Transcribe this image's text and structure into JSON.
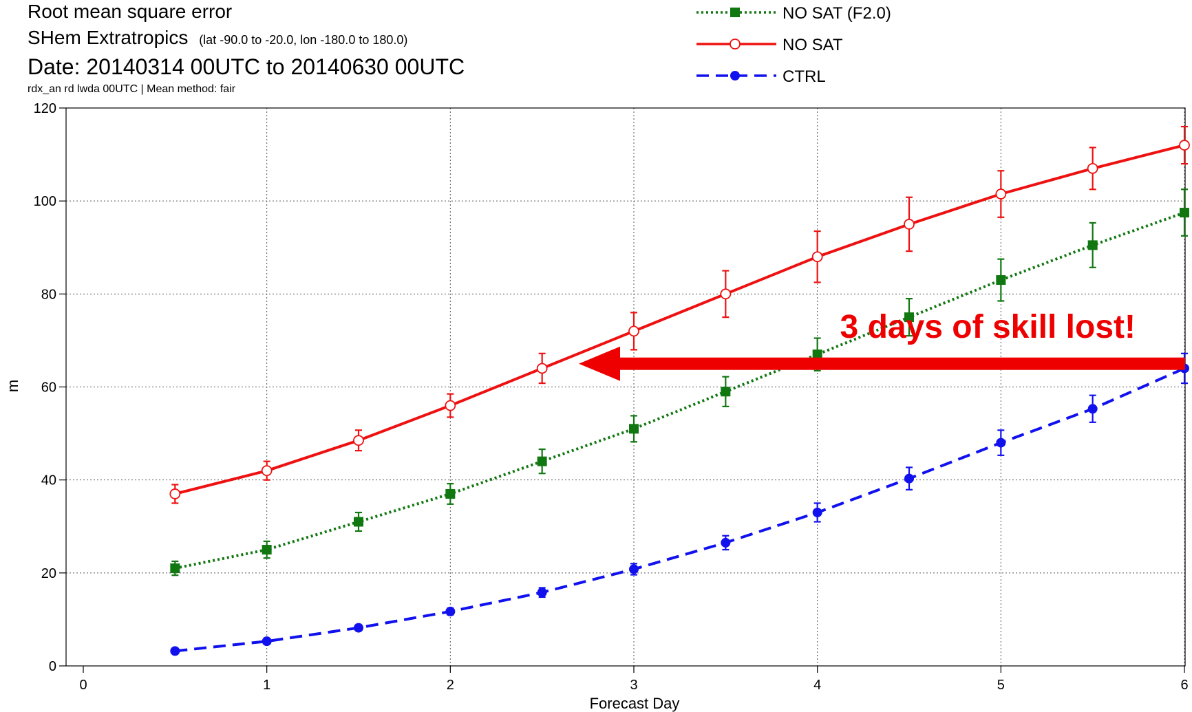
{
  "chart_data": {
    "type": "line",
    "title": "Root mean square error",
    "subtitle": "SHem Extratropics",
    "subtitle_detail": "(lat  -90.0 to -20.0, lon  -180.0 to  180.0)",
    "date_range": "Date: 20140314 00UTC to 20140630 00UTC",
    "method_note": "rdx_an rd lwda 00UTC | Mean method: fair",
    "xlabel": "Forecast Day",
    "ylabel": "m",
    "xlim": [
      0,
      6
    ],
    "ylim": [
      0,
      120
    ],
    "x_ticks": [
      "0",
      "1",
      "2",
      "3",
      "4",
      "5",
      "6"
    ],
    "y_ticks": [
      "0",
      "20",
      "40",
      "60",
      "80",
      "100",
      "120"
    ],
    "grid": true,
    "legend_position": "top-center",
    "x": [
      0.5,
      1,
      1.5,
      2,
      2.5,
      3,
      3.5,
      4,
      4.5,
      5,
      5.5,
      6
    ],
    "series": [
      {
        "name": "NO SAT (F2.0)",
        "color": "#117711",
        "line_style": "dotted",
        "marker": "filled-square",
        "values": [
          21,
          25,
          31,
          37,
          44,
          51,
          59,
          67,
          75,
          83,
          90.5,
          97.5
        ],
        "error": [
          1.5,
          1.8,
          2.0,
          2.2,
          2.6,
          2.8,
          3.2,
          3.5,
          4.0,
          4.5,
          4.8,
          5.0
        ]
      },
      {
        "name": "NO SAT",
        "color": "#ee1111",
        "line_style": "solid",
        "marker": "open-circle",
        "values": [
          37,
          42,
          48.5,
          56,
          64,
          72,
          80,
          88,
          95,
          101.5,
          107,
          112
        ],
        "error": [
          2.0,
          2.0,
          2.2,
          2.5,
          3.2,
          4.0,
          5.0,
          5.5,
          5.8,
          5.0,
          4.5,
          4.0
        ]
      },
      {
        "name": "CTRL",
        "color": "#1111ee",
        "line_style": "dashed",
        "marker": "filled-circle",
        "values": [
          3.2,
          5.3,
          8.2,
          11.7,
          15.8,
          20.8,
          26.5,
          33,
          40.3,
          48,
          55.3,
          64
        ],
        "error": [
          0.4,
          0.5,
          0.6,
          0.7,
          1.0,
          1.2,
          1.5,
          2.0,
          2.4,
          2.7,
          2.9,
          3.2
        ]
      }
    ],
    "annotation": {
      "text": "3 days of skill lost!",
      "color": "#ee0000",
      "arrow_from": [
        6,
        65
      ],
      "arrow_to": [
        2.7,
        65
      ]
    }
  }
}
